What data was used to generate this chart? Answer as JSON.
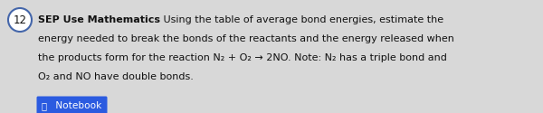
{
  "number": "12",
  "label_bold": "SEP Use Mathematics",
  "line1_rest": " Using the table of average bond energies, estimate the",
  "line2": "energy needed to break the bonds of the reactants and the energy released when",
  "line3": "the products form for the reaction N₂ + O₂ → 2NO. Note: N₂ has a triple bond and",
  "line4": "O₂ and NO have double bonds.",
  "notebook_label": " Notebook",
  "notebook_bg": "#2B5BE0",
  "notebook_text": "#ffffff",
  "bg_color": "#d8d8d8",
  "circle_color": "#ffffff",
  "circle_edge": "#4466aa",
  "text_color": "#111111",
  "font_size": 8.0
}
